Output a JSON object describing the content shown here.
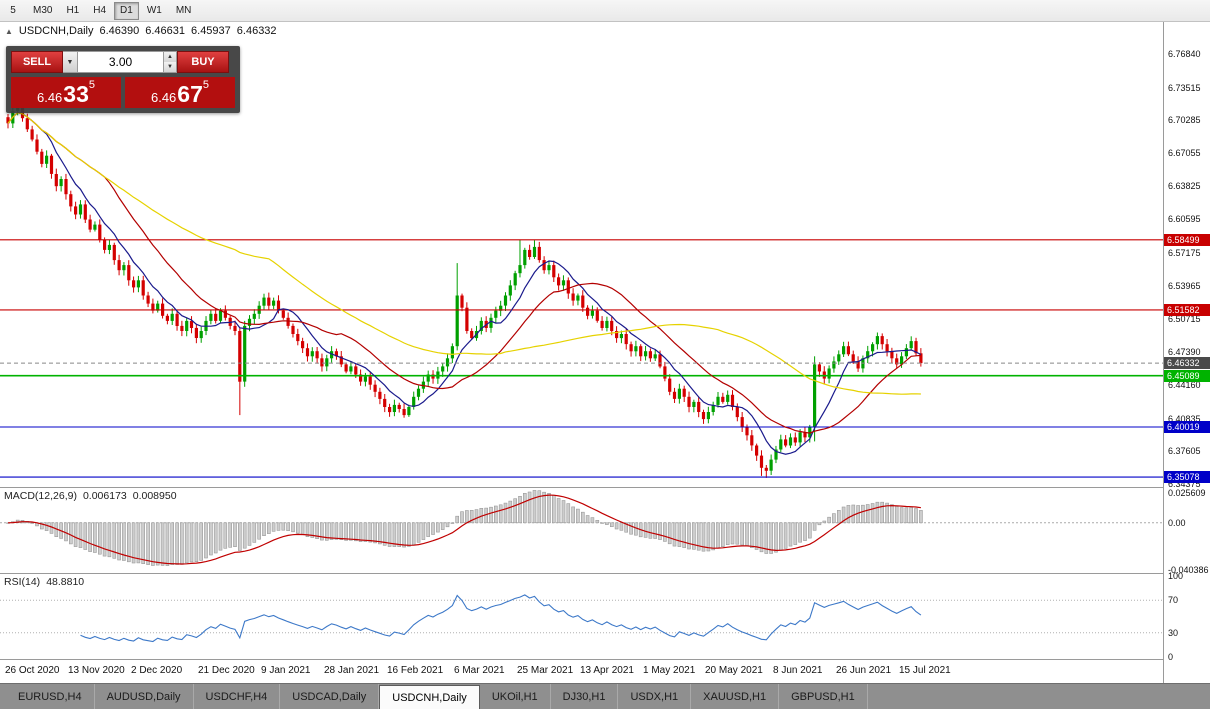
{
  "toolbar": {
    "timeframes": [
      {
        "label": "5",
        "active": false
      },
      {
        "label": "M30",
        "active": false
      },
      {
        "label": "H1",
        "active": false
      },
      {
        "label": "H4",
        "active": false
      },
      {
        "label": "D1",
        "active": true
      },
      {
        "label": "W1",
        "active": false
      },
      {
        "label": "MN",
        "active": false
      }
    ]
  },
  "header": {
    "collapse_icon": "▲",
    "symbol": "USDCNH,Daily",
    "open": "6.46390",
    "high": "6.46631",
    "low": "6.45937",
    "close": "6.46332"
  },
  "trade_panel": {
    "sell_label": "SELL",
    "buy_label": "BUY",
    "volume": "3.00",
    "volume_dropdown_icon": "▼",
    "spinner_up_icon": "▲",
    "spinner_down_icon": "▼",
    "bid": {
      "prefix": "6.46",
      "main": "33",
      "sup": "5"
    },
    "ask": {
      "prefix": "6.46",
      "main": "67",
      "sup": "5"
    }
  },
  "chart_data": {
    "type": "candlestick",
    "symbol": "USDCNH",
    "timeframe": "Daily",
    "up_color": "#00a000",
    "down_color": "#d40000",
    "price_range": {
      "max": 6.8,
      "min": 6.341
    },
    "closes": [
      6.7,
      6.712,
      6.72,
      6.705,
      6.694,
      6.684,
      6.672,
      6.66,
      6.668,
      6.65,
      6.638,
      6.645,
      6.63,
      6.618,
      6.61,
      6.62,
      6.605,
      6.595,
      6.6,
      6.585,
      6.575,
      6.58,
      6.565,
      6.555,
      6.56,
      6.545,
      6.538,
      6.545,
      6.53,
      6.522,
      6.515,
      6.522,
      6.51,
      6.505,
      6.512,
      6.5,
      6.495,
      6.505,
      6.498,
      6.488,
      6.495,
      6.505,
      6.512,
      6.505,
      6.515,
      6.508,
      6.5,
      6.495,
      6.445,
      6.5,
      6.507,
      6.512,
      6.52,
      6.528,
      6.52,
      6.525,
      6.515,
      6.508,
      6.5,
      6.492,
      6.485,
      6.478,
      6.47,
      6.475,
      6.468,
      6.46,
      6.468,
      6.475,
      6.47,
      6.462,
      6.455,
      6.46,
      6.452,
      6.445,
      6.45,
      6.442,
      6.435,
      6.428,
      6.42,
      6.415,
      6.422,
      6.418,
      6.412,
      6.42,
      6.43,
      6.438,
      6.445,
      6.452,
      6.448,
      6.455,
      6.46,
      6.468,
      6.48,
      6.53,
      6.518,
      6.495,
      6.488,
      6.495,
      6.505,
      6.498,
      6.508,
      6.515,
      6.52,
      6.53,
      6.54,
      6.552,
      6.56,
      6.575,
      6.568,
      6.578,
      6.565,
      6.555,
      6.56,
      6.548,
      6.54,
      6.545,
      6.532,
      6.525,
      6.53,
      6.518,
      6.51,
      6.515,
      6.505,
      6.498,
      6.505,
      6.495,
      6.488,
      6.492,
      6.482,
      6.475,
      6.48,
      6.47,
      6.475,
      6.468,
      6.472,
      6.46,
      6.448,
      6.435,
      6.428,
      6.438,
      6.43,
      6.42,
      6.425,
      6.415,
      6.408,
      6.415,
      6.422,
      6.43,
      6.425,
      6.432,
      6.42,
      6.41,
      6.4,
      6.392,
      6.382,
      6.372,
      6.36,
      6.357,
      6.368,
      6.378,
      6.388,
      6.382,
      6.39,
      6.385,
      6.395,
      6.39,
      6.4,
      6.462,
      6.455,
      6.448,
      6.458,
      6.465,
      6.472,
      6.48,
      6.472,
      6.465,
      6.458,
      6.468,
      6.475,
      6.482,
      6.49,
      6.482,
      6.475,
      6.468,
      6.462,
      6.47,
      6.478,
      6.485,
      6.473,
      6.4633
    ],
    "wick_overrides": {
      "2": {
        "h": 6.731
      },
      "48": {
        "l": 6.412
      },
      "93": {
        "h": 6.562
      },
      "106": {
        "h": 6.585
      },
      "109": {
        "h": 6.5845
      },
      "156": {
        "l": 6.352
      },
      "157": {
        "l": 6.35
      },
      "167": {
        "h": 6.47,
        "l": 6.386
      },
      "180": {
        "h": 6.4935
      }
    },
    "moving_averages": [
      {
        "name": "fast",
        "period": 8,
        "color": "#1a1a8c"
      },
      {
        "name": "medium",
        "period": 21,
        "color": "#b30000"
      },
      {
        "name": "slow",
        "period": 55,
        "color": "#e6d200"
      }
    ],
    "levels": [
      {
        "label": "6.58499",
        "value": 6.58499,
        "color": "#c80000"
      },
      {
        "label": "6.51582",
        "value": 6.51582,
        "color": "#c80000"
      },
      {
        "label": "6.45089",
        "value": 6.45089,
        "color": "#00b300"
      },
      {
        "label": "6.40019",
        "value": 6.40019,
        "color": "#0000c8"
      },
      {
        "label": "6.35078",
        "value": 6.35078,
        "color": "#0000c8"
      }
    ],
    "current_price": {
      "label": "6.46332",
      "value": 6.46332,
      "badge_color": "#4a4a4a"
    },
    "y_axis_labels": [
      "6.76840",
      "6.73515",
      "6.70285",
      "6.67055",
      "6.63825",
      "6.60595",
      "6.57175",
      "6.53965",
      "6.50715",
      "6.47390",
      "6.44160",
      "6.40835",
      "6.37605",
      "6.34375"
    ],
    "x_axis_labels": [
      {
        "label": "26 Oct 2020",
        "index": 0
      },
      {
        "label": "13 Nov 2020",
        "index": 13
      },
      {
        "label": "2 Dec 2020",
        "index": 26
      },
      {
        "label": "21 Dec 2020",
        "index": 40
      },
      {
        "label": "9 Jan 2021",
        "index": 53
      },
      {
        "label": "28 Jan 2021",
        "index": 66
      },
      {
        "label": "16 Feb 2021",
        "index": 79
      },
      {
        "label": "6 Mar 2021",
        "index": 93
      },
      {
        "label": "25 Mar 2021",
        "index": 106
      },
      {
        "label": "13 Apr 2021",
        "index": 119
      },
      {
        "label": "1 May 2021",
        "index": 132
      },
      {
        "label": "20 May 2021",
        "index": 145
      },
      {
        "label": "8 Jun 2021",
        "index": 159
      },
      {
        "label": "26 Jun 2021",
        "index": 172
      },
      {
        "label": "15 Jul 2021",
        "index": 185
      }
    ]
  },
  "macd": {
    "title": "MACD(12,26,9)",
    "value_main": "0.006173",
    "value_signal": "0.008950",
    "params": {
      "fast": 12,
      "slow": 26,
      "signal": 9
    },
    "range": {
      "max": 0.0299,
      "min": -0.0431
    },
    "axis_labels": [
      {
        "label": "0.025609",
        "value": 0.025609
      },
      {
        "label": "0.00",
        "value": 0
      },
      {
        "label": "-0.040386",
        "value": -0.040386
      }
    ],
    "histogram_color": "#cdcdcd",
    "histogram_border": "#9a9a9a",
    "signal_color": "#c00000"
  },
  "rsi": {
    "title": "RSI(14)",
    "value": "48.8810",
    "period": 14,
    "range": {
      "max": 102.5,
      "min": -2.5
    },
    "axis_labels": [
      {
        "label": "100",
        "value": 100
      },
      {
        "label": "70",
        "value": 70
      },
      {
        "label": "30",
        "value": 30
      },
      {
        "label": "0",
        "value": 0
      }
    ],
    "levels": [
      70,
      30
    ],
    "line_color": "#3c78c8"
  },
  "tabs": [
    {
      "label": "EURUSD,H4",
      "active": false
    },
    {
      "label": "AUDUSD,Daily",
      "active": false
    },
    {
      "label": "USDCHF,H4",
      "active": false
    },
    {
      "label": "USDCAD,Daily",
      "active": false
    },
    {
      "label": "USDCNH,Daily",
      "active": true
    },
    {
      "label": "UKOil,H1",
      "active": false
    },
    {
      "label": "DJ30,H1",
      "active": false
    },
    {
      "label": "USDX,H1",
      "active": false
    },
    {
      "label": "XAUUSD,H1",
      "active": false
    },
    {
      "label": "GBPUSD,H1",
      "active": false
    }
  ]
}
